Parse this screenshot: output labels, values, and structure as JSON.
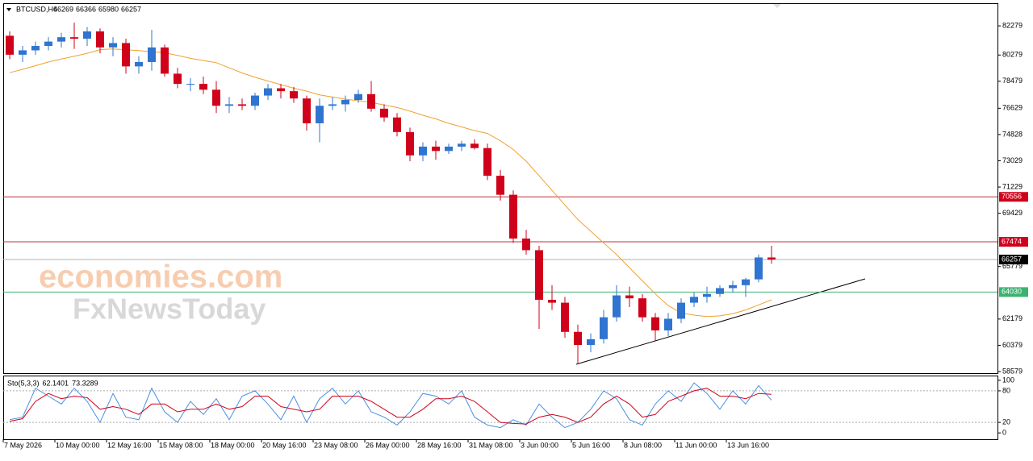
{
  "chart_data": {
    "type": "candlestick",
    "symbol": "BTCUSD,H4",
    "quote": [
      66269,
      66366,
      65980,
      66257
    ],
    "watermark": [
      "economies.com",
      "FxNewsToday"
    ],
    "categories": [
      "7 May 2026",
      null,
      null,
      null,
      "10 May 00:00",
      null,
      null,
      null,
      "12 May 16:00",
      null,
      null,
      null,
      "15 May 08:00",
      null,
      null,
      null,
      "18 May 00:00",
      null,
      null,
      null,
      "20 May 16:00",
      null,
      null,
      null,
      "23 May 08:00",
      null,
      null,
      null,
      "26 May 00:00",
      null,
      null,
      null,
      "28 May 16:00",
      null,
      null,
      null,
      "31 May 08:00",
      null,
      null,
      null,
      "3 Jun 00:00",
      null,
      null,
      null,
      "5 Jun 16:00",
      null,
      null,
      null,
      "8 Jun 08:00",
      null,
      null,
      null,
      "11 Jun 00:00",
      null,
      null,
      null,
      "13 Jun 16:00",
      null,
      null,
      null
    ],
    "open": [
      81600,
      80300,
      80600,
      80900,
      81200,
      81500,
      81400,
      81900,
      80800,
      81100,
      79500,
      79800,
      80800,
      79000,
      78300,
      78300,
      77900,
      76800,
      76900,
      76800,
      77500,
      78000,
      77800,
      77300,
      75600,
      76800,
      76900,
      77200,
      77600,
      76600,
      76000,
      75000,
      73400,
      74000,
      73700,
      74000,
      74200,
      73900,
      72000,
      70700,
      67700,
      66900,
      63500,
      63300,
      61300,
      60400,
      60800,
      62300,
      63800,
      63600,
      62300,
      61400,
      62200,
      63300,
      63700,
      63900,
      64300,
      64500,
      64900,
      66400
    ],
    "high": [
      81900,
      80900,
      81200,
      81500,
      81800,
      82500,
      82200,
      82100,
      81500,
      81400,
      80200,
      82000,
      81000,
      79400,
      78700,
      78800,
      78500,
      77400,
      77300,
      77700,
      78300,
      78300,
      78100,
      77500,
      77300,
      77400,
      77500,
      77900,
      78500,
      76900,
      76300,
      75300,
      74300,
      74400,
      74200,
      74400,
      74500,
      74200,
      72400,
      71000,
      68300,
      67200,
      64500,
      63700,
      61800,
      61200,
      62800,
      64500,
      64400,
      63900,
      62600,
      62600,
      63600,
      64000,
      64400,
      64500,
      64800,
      65000,
      66600,
      67200
    ],
    "low": [
      80000,
      79800,
      80300,
      80600,
      80800,
      80700,
      80900,
      80400,
      80200,
      79000,
      79000,
      79200,
      78800,
      78000,
      77800,
      77600,
      76300,
      76300,
      76500,
      76500,
      77200,
      77300,
      77000,
      75100,
      74300,
      76500,
      76400,
      77000,
      76400,
      75700,
      74700,
      73000,
      73000,
      73100,
      73500,
      73700,
      73800,
      71700,
      70300,
      67400,
      66600,
      61500,
      62800,
      60900,
      59100,
      59900,
      60500,
      62000,
      63000,
      62000,
      60700,
      61000,
      61900,
      63000,
      63300,
      63700,
      64000,
      63700,
      64700,
      65980
    ],
    "close": [
      80300,
      80600,
      80900,
      81200,
      81500,
      81400,
      81900,
      80800,
      81100,
      79500,
      79800,
      80800,
      79000,
      78300,
      78300,
      77900,
      76800,
      76900,
      76800,
      77500,
      78000,
      77800,
      77300,
      75600,
      76800,
      76900,
      77200,
      77600,
      76600,
      76000,
      75000,
      73400,
      74000,
      73700,
      74000,
      74200,
      73900,
      72000,
      70700,
      67700,
      66900,
      63500,
      63300,
      61300,
      60400,
      60800,
      62300,
      63800,
      63600,
      62300,
      61400,
      62200,
      63300,
      63700,
      63900,
      64300,
      64500,
      64900,
      66400,
      66257
    ],
    "bull_color": "#2f74d0",
    "bear_color": "#d0021b",
    "ylim": [
      58470,
      83830
    ],
    "yticks": [
      82279,
      80279,
      78479,
      76629,
      74828,
      73029,
      71229,
      69429,
      65779,
      62179,
      60379,
      58579
    ],
    "levels": [
      {
        "value": 70556,
        "line": "#c0303a",
        "box": "#d0021b"
      },
      {
        "value": 67474,
        "line": "#c0303a",
        "box": "#d0021b"
      },
      {
        "value": 66257,
        "line": "#b0b0b0",
        "box": "#000000"
      },
      {
        "value": 64030,
        "line": "#3cb371",
        "box": "#3cb371"
      }
    ],
    "ma": {
      "color": "#f0a030",
      "values": [
        79070,
        79300,
        79550,
        79800,
        80000,
        80200,
        80400,
        80650,
        80700,
        80640,
        80580,
        80500,
        80430,
        80250,
        80050,
        79900,
        79750,
        79400,
        79050,
        78750,
        78500,
        78250,
        78000,
        77800,
        77550,
        77400,
        77250,
        77150,
        77030,
        76850,
        76680,
        76430,
        76150,
        75900,
        75600,
        75350,
        75100,
        74900,
        74400,
        73800,
        73000,
        72000,
        71000,
        70000,
        69000,
        68200,
        67400,
        66600,
        65700,
        64800,
        63900,
        63100,
        62600,
        62450,
        62350,
        62400,
        62550,
        62800,
        63150,
        63500
      ]
    },
    "stochastic": {
      "label": "Sto(5,3,3)",
      "readings": [
        62.1401,
        73.3289
      ],
      "ylim": [
        -12,
        109
      ],
      "yticks": [
        100,
        80,
        20,
        0
      ],
      "levels": [
        80,
        20
      ],
      "k": {
        "color": "#4a90e2",
        "values": [
          25,
          30,
          85,
          70,
          55,
          85,
          60,
          20,
          75,
          30,
          25,
          85,
          40,
          20,
          60,
          35,
          65,
          25,
          70,
          80,
          55,
          25,
          70,
          20,
          65,
          85,
          55,
          80,
          40,
          30,
          15,
          40,
          75,
          70,
          55,
          80,
          30,
          15,
          10,
          25,
          15,
          55,
          30,
          10,
          20,
          45,
          80,
          65,
          25,
          15,
          55,
          80,
          60,
          95,
          75,
          45,
          80,
          55,
          90,
          62.14
        ]
      },
      "d": {
        "color": "#d0021b",
        "values": [
          22,
          27,
          60,
          75,
          65,
          70,
          67,
          45,
          50,
          45,
          35,
          55,
          55,
          40,
          45,
          45,
          55,
          45,
          50,
          70,
          70,
          50,
          45,
          40,
          45,
          70,
          70,
          70,
          60,
          45,
          30,
          30,
          45,
          65,
          65,
          70,
          60,
          40,
          20,
          18,
          17,
          30,
          35,
          30,
          20,
          30,
          55,
          70,
          55,
          30,
          35,
          60,
          70,
          80,
          85,
          70,
          70,
          65,
          75,
          73.33
        ]
      }
    }
  }
}
